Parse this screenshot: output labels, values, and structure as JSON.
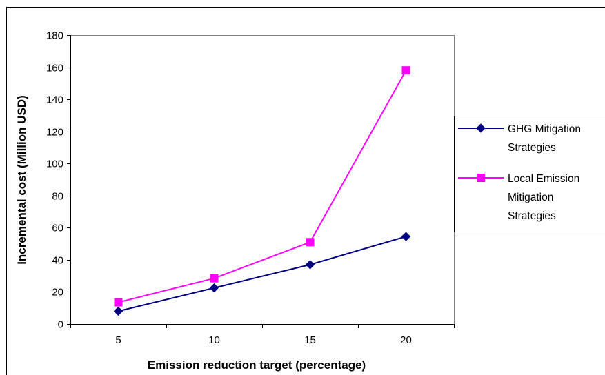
{
  "chart_data": {
    "type": "line",
    "title": "",
    "xlabel": "Emission reduction target (percentage)",
    "ylabel": "Incremental cost (Million USD)",
    "categories": [
      "5",
      "10",
      "15",
      "20"
    ],
    "ylim": [
      0,
      180
    ],
    "yticks": [
      "0",
      "20",
      "40",
      "60",
      "80",
      "100",
      "120",
      "140",
      "160",
      "180"
    ],
    "grid": false,
    "legend_position": "right",
    "series": [
      {
        "name_lines": [
          "GHG Mitigation",
          "Strategies"
        ],
        "values": [
          8,
          22.5,
          37,
          54.5
        ],
        "color": "#000080",
        "marker": "diamond"
      },
      {
        "name_lines": [
          "Local Emission",
          "Mitigation",
          "Strategies"
        ],
        "values": [
          13.5,
          28.5,
          51,
          158
        ],
        "color": "#ff00ff",
        "marker": "square"
      }
    ]
  }
}
